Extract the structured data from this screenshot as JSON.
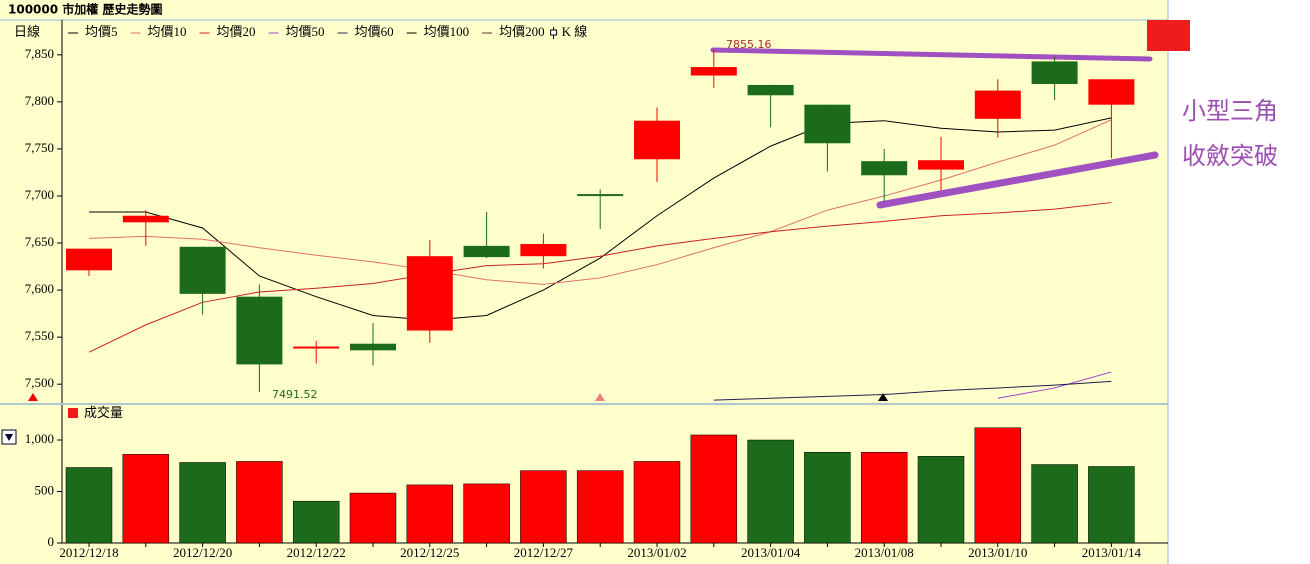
{
  "chart_data": [
    {
      "type": "candlestick",
      "title": "100000 市加權  歷史走勢圖",
      "period": "日線",
      "candle_legend": "K 線",
      "up_color": "#ff0000",
      "down_color": "#1b6b1b",
      "open": [
        7621,
        7672,
        7646,
        7593,
        7538,
        7543,
        7557,
        7647,
        7636,
        7702,
        7739,
        7828,
        7818,
        7797,
        7737,
        7728,
        7782,
        7843,
        7797
      ],
      "high": [
        7644,
        7685,
        7646,
        7606,
        7546,
        7565,
        7653,
        7683,
        7660,
        7707,
        7794,
        7855.16,
        7818,
        7797,
        7750,
        7763,
        7824,
        7848,
        7824
      ],
      "low": [
        7615,
        7647,
        7574,
        7491.52,
        7522,
        7520,
        7544,
        7634,
        7623,
        7665,
        7715,
        7815,
        7773,
        7726,
        7694,
        7706,
        7762,
        7802,
        7740
      ],
      "close": [
        7644,
        7679,
        7596,
        7521,
        7540,
        7536,
        7636,
        7635,
        7649,
        7701,
        7780,
        7837,
        7807,
        7756,
        7722,
        7738,
        7812,
        7819,
        7824
      ],
      "series": [
        {
          "name": "均價5",
          "color": "#000000",
          "values": [
            7683,
            7683,
            7666,
            7615,
            7593,
            7573,
            7568,
            7573,
            7600,
            7634,
            7679,
            7719,
            7753,
            7777,
            7780,
            7772,
            7768,
            7770,
            7783
          ]
        },
        {
          "name": "均價10",
          "color": "#e07070",
          "values": [
            7655,
            7657,
            7654,
            7645,
            7637,
            7630,
            7621,
            7611,
            7606,
            7613,
            7627,
            7645,
            7662,
            7685,
            7700,
            7717,
            7736,
            7754,
            7781
          ]
        },
        {
          "name": "均價20",
          "color": "#cc2020",
          "values": [
            7534,
            7563,
            7587,
            7598,
            7602,
            7607,
            7617,
            7626,
            7628,
            7636,
            7647,
            7655,
            7662,
            7668,
            7673,
            7679,
            7682,
            7686,
            7693
          ]
        },
        {
          "name": "均價50",
          "color": "#a040d0",
          "values": [
            null,
            null,
            null,
            null,
            null,
            null,
            null,
            null,
            null,
            null,
            null,
            null,
            null,
            null,
            null,
            null,
            7485,
            7496,
            7513
          ]
        },
        {
          "name": "均價60",
          "color": "#202050",
          "values": [
            null,
            null,
            null,
            null,
            null,
            null,
            null,
            null,
            null,
            null,
            null,
            7483,
            7485,
            7487,
            7489,
            7493,
            7496,
            7499,
            7503
          ]
        },
        {
          "name": "均價100",
          "color": "#000000"
        },
        {
          "name": "均價200",
          "color": "#603030"
        }
      ],
      "ylim": [
        7480,
        7887
      ],
      "yticks": [
        {
          "value": 7500,
          "label": "7,500"
        },
        {
          "value": 7550,
          "label": "7,550"
        },
        {
          "value": 7600,
          "label": "7,600"
        },
        {
          "value": 7650,
          "label": "7,650"
        },
        {
          "value": 7700,
          "label": "7,700"
        },
        {
          "value": 7750,
          "label": "7,750"
        },
        {
          "value": 7800,
          "label": "7,800"
        },
        {
          "value": 7850,
          "label": "7,850"
        }
      ],
      "annotations": [
        "小型三角",
        "收斂突破"
      ]
    },
    {
      "type": "bar",
      "legend": "成交量",
      "categories": [
        "2012/12/18",
        null,
        "2012/12/20",
        null,
        "2012/12/22",
        null,
        "2012/12/25",
        null,
        "2012/12/27",
        null,
        "2013/01/02",
        null,
        "2013/01/04",
        null,
        "2013/01/08",
        null,
        "2013/01/10",
        null,
        "2013/01/14"
      ],
      "values": [
        733,
        861,
        782,
        792,
        406,
        485,
        564,
        574,
        703,
        703,
        792,
        1049,
        1000,
        881,
        881,
        842,
        1119,
        762,
        743
      ],
      "colors": [
        "#1b6b1b",
        "#ff0000",
        "#1b6b1b",
        "#ff0000",
        "#1b6b1b",
        "#ff0000",
        "#ff0000",
        "#ff0000",
        "#ff0000",
        "#ff0000",
        "#ff0000",
        "#ff0000",
        "#1b6b1b",
        "#1b6b1b",
        "#ff0000",
        "#1b6b1b",
        "#ff0000",
        "#1b6b1b",
        "#1b6b1b"
      ],
      "ylim": [
        0,
        1340
      ],
      "yticks": [
        0,
        500,
        {
          "value": 1000,
          "label": "1,000"
        }
      ]
    }
  ]
}
